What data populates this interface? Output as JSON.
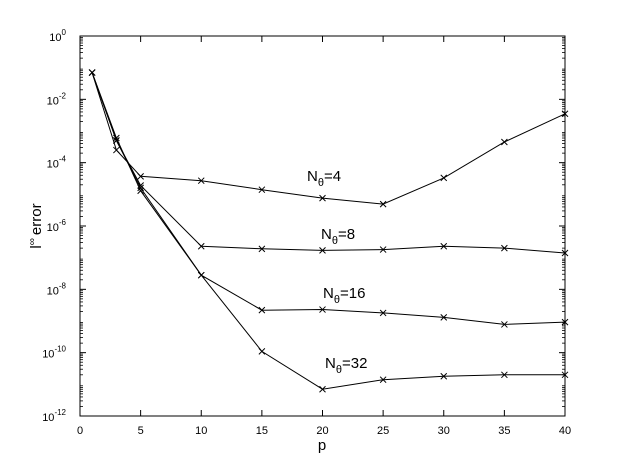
{
  "chart_data": {
    "type": "line",
    "title": "",
    "xlabel": "p",
    "ylabel": "l∞ error",
    "ylabel_base": "l",
    "ylabel_sup": "∞",
    "ylabel_text": "error",
    "xlim": [
      0,
      40
    ],
    "ylim": [
      1e-12,
      1
    ],
    "yscale": "log",
    "grid": false,
    "legend": "none (series labeled inline)",
    "marker": "x",
    "color": "#000000",
    "x_ticks": [
      "0",
      "5",
      "10",
      "15",
      "20",
      "25",
      "30",
      "35",
      "40"
    ],
    "y_ticks": [
      {
        "base": "10",
        "exp": "0"
      },
      {
        "base": "10",
        "exp": "-2"
      },
      {
        "base": "10",
        "exp": "-4"
      },
      {
        "base": "10",
        "exp": "-6"
      },
      {
        "base": "10",
        "exp": "-8"
      },
      {
        "base": "10",
        "exp": "-10"
      },
      {
        "base": "10",
        "exp": "-12"
      }
    ],
    "series": [
      {
        "name": "Nθ=4",
        "label_main": "N",
        "label_sub": "θ",
        "label_rest": "=4",
        "x": [
          1,
          3,
          5,
          10,
          15,
          20,
          25,
          30,
          35,
          40
        ],
        "y": [
          0.07,
          0.00025,
          3.7e-05,
          2.7e-05,
          1.4e-05,
          7.6e-06,
          4.9e-06,
          3.3e-05,
          0.00045,
          0.0035
        ]
      },
      {
        "name": "Nθ=8",
        "label_main": "N",
        "label_sub": "θ",
        "label_rest": "=8",
        "x": [
          1,
          3,
          5,
          10,
          15,
          20,
          25,
          30,
          35,
          40
        ],
        "y": [
          0.07,
          0.0005,
          1.9e-05,
          2.3e-07,
          1.9e-07,
          1.7e-07,
          1.8e-07,
          2.3e-07,
          2e-07,
          1.4e-07
        ]
      },
      {
        "name": "Nθ=16",
        "label_main": "N",
        "label_sub": "θ",
        "label_rest": "=16",
        "x": [
          1,
          3,
          5,
          10,
          15,
          20,
          25,
          30,
          35,
          40
        ],
        "y": [
          0.07,
          0.0005,
          1.6e-05,
          2.8e-08,
          2.2e-09,
          2.3e-09,
          1.8e-09,
          1.3e-09,
          7.8e-10,
          9.2e-10
        ]
      },
      {
        "name": "Nθ=32",
        "label_main": "N",
        "label_sub": "θ",
        "label_rest": "=32",
        "x": [
          1,
          3,
          5,
          10,
          15,
          20,
          25,
          30,
          35,
          40
        ],
        "y": [
          0.07,
          0.0006,
          1.3e-05,
          2.8e-08,
          1.1e-10,
          7e-12,
          1.4e-11,
          1.8e-11,
          2e-11,
          2e-11
        ]
      }
    ]
  }
}
